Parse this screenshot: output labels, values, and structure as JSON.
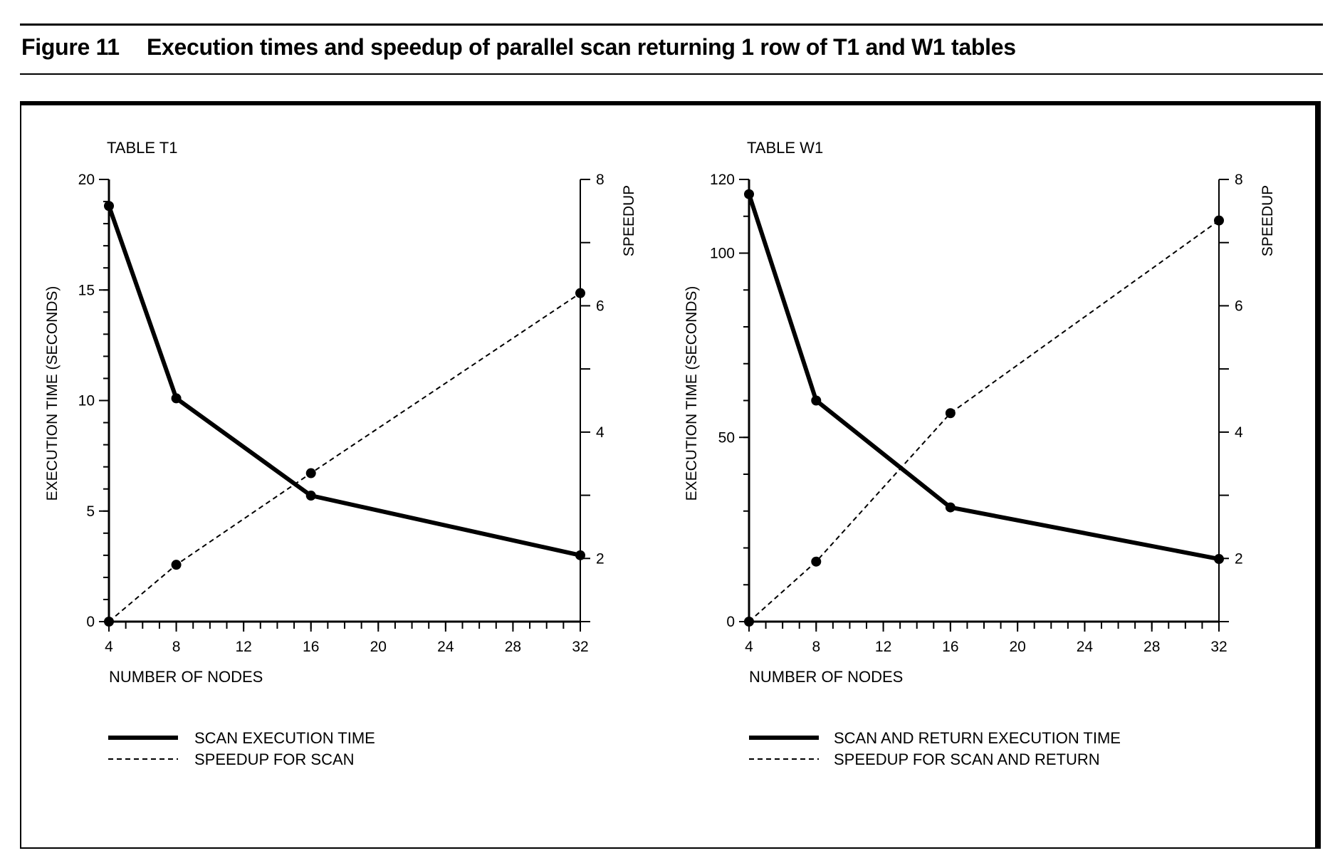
{
  "figure": {
    "label": "Figure 11",
    "title": "Execution times and speedup of parallel scan returning 1 row of T1 and W1 tables"
  },
  "chart_data": [
    {
      "type": "line",
      "title": "TABLE T1",
      "xlabel": "NUMBER OF NODES",
      "ylabel": "EXECUTION TIME (SECONDS)",
      "y2label": "SPEEDUP",
      "xlim": [
        4,
        32
      ],
      "ylim": [
        0,
        20
      ],
      "y2lim": [
        1,
        8
      ],
      "x_ticks": [
        4,
        8,
        12,
        16,
        20,
        24,
        28,
        32
      ],
      "y_ticks": [
        0,
        5,
        10,
        15,
        20
      ],
      "y2_ticks": [
        2,
        4,
        6,
        8
      ],
      "grid": false,
      "legend_position": "below",
      "series": [
        {
          "name": "SCAN EXECUTION TIME",
          "axis": "left",
          "style": "solid",
          "x": [
            4,
            8,
            16,
            32
          ],
          "values": [
            18.8,
            10.1,
            5.7,
            3.0
          ]
        },
        {
          "name": "SPEEDUP FOR SCAN",
          "axis": "right",
          "style": "dashed",
          "x": [
            4,
            8,
            16,
            32
          ],
          "values": [
            1.0,
            1.9,
            3.35,
            6.2
          ]
        }
      ]
    },
    {
      "type": "line",
      "title": "TABLE W1",
      "xlabel": "NUMBER OF NODES",
      "ylabel": "EXECUTION TIME (SECONDS)",
      "y2label": "SPEEDUP",
      "xlim": [
        4,
        32
      ],
      "ylim": [
        0,
        120
      ],
      "y2lim": [
        1,
        8
      ],
      "x_ticks": [
        4,
        8,
        12,
        16,
        20,
        24,
        28,
        32
      ],
      "y_ticks": [
        0,
        50,
        100,
        120
      ],
      "y2_ticks": [
        2,
        4,
        6,
        8
      ],
      "grid": false,
      "legend_position": "below",
      "series": [
        {
          "name": "SCAN AND RETURN EXECUTION TIME",
          "axis": "left",
          "style": "solid",
          "x": [
            4,
            8,
            16,
            32
          ],
          "values": [
            116,
            60,
            31,
            17
          ]
        },
        {
          "name": "SPEEDUP FOR SCAN AND RETURN",
          "axis": "right",
          "style": "dashed",
          "x": [
            4,
            8,
            16,
            32
          ],
          "values": [
            1.0,
            1.95,
            4.3,
            7.35
          ]
        }
      ]
    }
  ]
}
